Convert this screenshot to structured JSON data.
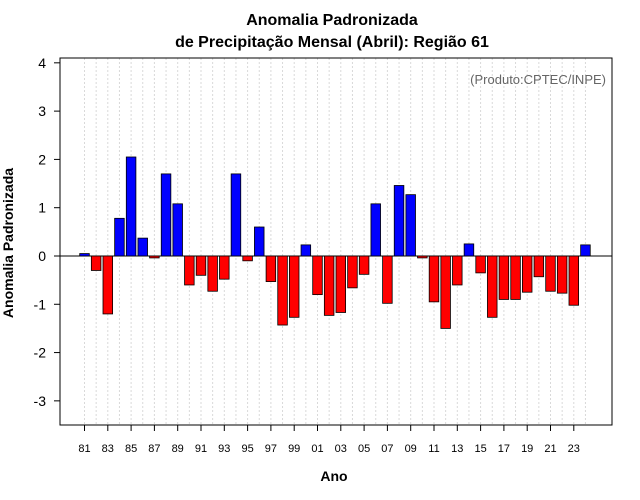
{
  "chart_data": {
    "type": "bar",
    "title_line1": "Anomalia Padronizada",
    "title_line2": "de Precipitação Mensal (Abril): Região 61",
    "xlabel": "Ano",
    "ylabel": "Anomalia Padronizada",
    "credit": "(Produto:CPTEC/INPE)",
    "ylim": [
      -3.5,
      4.1
    ],
    "yticks": [
      -3,
      -2,
      -1,
      0,
      1,
      2,
      3,
      4
    ],
    "positive_color": "#0000ff",
    "negative_color": "#ff0000",
    "categories": [
      "81",
      "82",
      "83",
      "84",
      "85",
      "86",
      "87",
      "88",
      "89",
      "90",
      "91",
      "92",
      "93",
      "94",
      "95",
      "96",
      "97",
      "98",
      "99",
      "00",
      "01",
      "02",
      "03",
      "04",
      "05",
      "06",
      "07",
      "08",
      "09",
      "10",
      "11",
      "12",
      "13",
      "14",
      "15",
      "16",
      "17",
      "18",
      "19",
      "20",
      "21",
      "22",
      "23",
      "24"
    ],
    "tick_labels": [
      "81",
      "83",
      "85",
      "87",
      "89",
      "91",
      "93",
      "95",
      "97",
      "99",
      "01",
      "03",
      "05",
      "07",
      "09",
      "11",
      "13",
      "15",
      "17",
      "19",
      "21",
      "23"
    ],
    "values": [
      0.05,
      -0.3,
      -1.2,
      0.78,
      2.05,
      0.37,
      -0.04,
      1.7,
      1.08,
      -0.6,
      -0.4,
      -0.73,
      -0.48,
      1.7,
      -0.1,
      0.6,
      -0.53,
      -1.43,
      -1.27,
      0.23,
      -0.8,
      -1.23,
      -1.17,
      -0.66,
      -0.38,
      1.08,
      -0.98,
      1.46,
      1.27,
      -0.04,
      -0.95,
      -1.5,
      -0.6,
      0.25,
      -0.35,
      -1.27,
      -0.9,
      -0.9,
      -0.75,
      -0.43,
      -0.73,
      -0.77,
      -1.02,
      0.23
    ]
  }
}
